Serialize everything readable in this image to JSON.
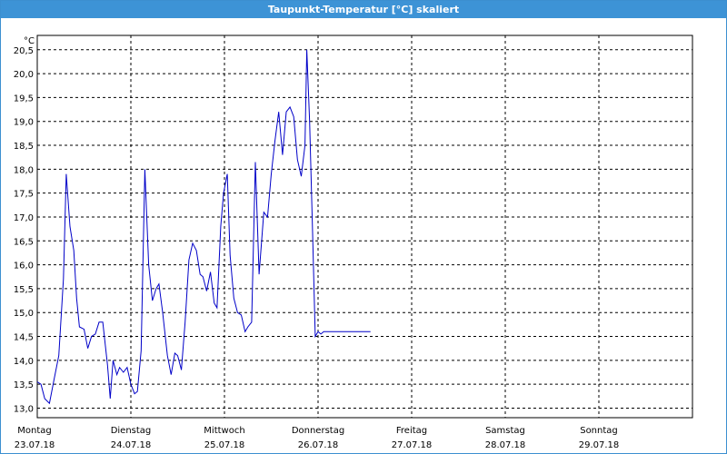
{
  "window": {
    "title": "Taupunkt-Temperatur [°C] skaliert"
  },
  "chart_data": {
    "type": "line",
    "title": "Taupunkt-Temperatur [°C] skaliert",
    "ylabel": "°C",
    "ylim": [
      12.8,
      20.8
    ],
    "yticks": [
      "13,0",
      "13,5",
      "14,0",
      "14,5",
      "15,0",
      "15,5",
      "16,0",
      "16,5",
      "17,0",
      "17,5",
      "18,0",
      "18,5",
      "19,0",
      "19,5",
      "20,0",
      "20,5"
    ],
    "ytick_values": [
      13.0,
      13.5,
      14.0,
      14.5,
      15.0,
      15.5,
      16.0,
      16.5,
      17.0,
      17.5,
      18.0,
      18.5,
      19.0,
      19.5,
      20.0,
      20.5
    ],
    "xlim": [
      0,
      7
    ],
    "days": [
      {
        "name": "Montag",
        "date": "23.07.18"
      },
      {
        "name": "Dienstag",
        "date": "24.07.18"
      },
      {
        "name": "Mittwoch",
        "date": "25.07.18"
      },
      {
        "name": "Donnerstag",
        "date": "26.07.18"
      },
      {
        "name": "Freitag",
        "date": "27.07.18"
      },
      {
        "name": "Samstag",
        "date": "28.07.18"
      },
      {
        "name": "Sonntag",
        "date": "29.07.18"
      }
    ],
    "grid": true,
    "line_color": "#0000c8",
    "series": [
      {
        "x": [
          0.0,
          0.04,
          0.08,
          0.13,
          0.18,
          0.23,
          0.28,
          0.31,
          0.35,
          0.39,
          0.42,
          0.45,
          0.5,
          0.54,
          0.58,
          0.62,
          0.66,
          0.7,
          0.75,
          0.78,
          0.81,
          0.85,
          0.88,
          0.92,
          0.96,
          1.0,
          1.04,
          1.07,
          1.11,
          1.15,
          1.19,
          1.23,
          1.27,
          1.3,
          1.34,
          1.39,
          1.43,
          1.47,
          1.5,
          1.54,
          1.58,
          1.62,
          1.66,
          1.7,
          1.74,
          1.77,
          1.81,
          1.85,
          1.89,
          1.92,
          1.96,
          1.99,
          2.03,
          2.06,
          2.1,
          2.14,
          2.18,
          2.22,
          2.25,
          2.29,
          2.33,
          2.37,
          2.42,
          2.46,
          2.5,
          2.54,
          2.58,
          2.62,
          2.66,
          2.7,
          2.74,
          2.78,
          2.82,
          2.86,
          2.88,
          2.91,
          2.94,
          2.97,
          3.0,
          3.03,
          3.06,
          3.09,
          3.12,
          3.15,
          3.18,
          3.21,
          3.25,
          3.29,
          3.32,
          3.35,
          3.37,
          3.39,
          3.41,
          3.45,
          3.47,
          3.5,
          3.53,
          3.56
        ],
        "y": [
          13.55,
          13.5,
          13.2,
          13.1,
          13.6,
          14.1,
          15.7,
          17.9,
          16.8,
          16.3,
          15.3,
          14.7,
          14.65,
          14.25,
          14.5,
          14.55,
          14.8,
          14.8,
          13.9,
          13.2,
          14.0,
          13.7,
          13.85,
          13.75,
          13.85,
          13.5,
          13.3,
          13.35,
          14.2,
          18.0,
          16.0,
          15.25,
          15.5,
          15.6,
          15.0,
          14.1,
          13.7,
          14.15,
          14.1,
          13.8,
          14.8,
          16.1,
          16.45,
          16.3,
          15.8,
          15.75,
          15.45,
          15.85,
          15.2,
          15.1,
          16.8,
          17.5,
          17.9,
          16.2,
          15.3,
          15.0,
          14.95,
          14.6,
          14.7,
          14.8,
          18.15,
          15.8,
          17.1,
          17.0,
          17.9,
          18.6,
          19.2,
          18.3,
          19.2,
          19.3,
          19.1,
          18.2,
          17.85,
          18.5,
          20.5,
          19.0,
          16.8,
          14.5,
          14.6,
          14.55,
          14.6,
          14.6,
          14.6,
          14.6,
          14.6,
          14.6,
          14.6,
          14.6,
          14.6,
          14.6,
          14.6,
          14.6,
          14.6,
          14.6,
          14.6,
          14.6,
          14.6,
          14.6
        ]
      }
    ]
  }
}
